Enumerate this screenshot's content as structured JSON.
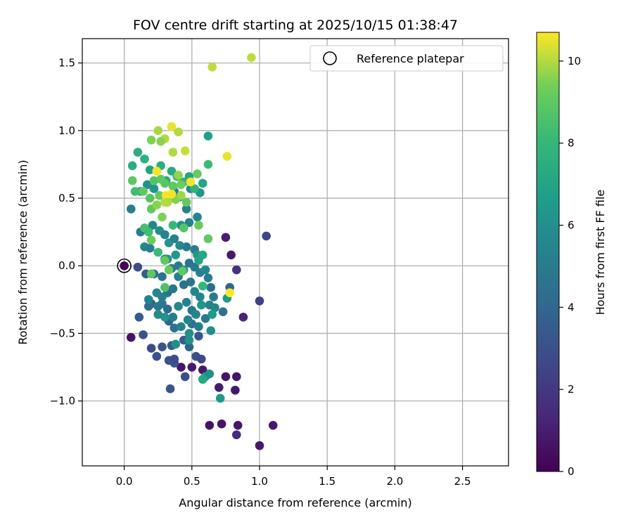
{
  "chart_data": {
    "type": "scatter",
    "title": "FOV centre drift starting at 2025/10/15 01:38:47",
    "xlabel": "Angular distance from reference (arcmin)",
    "ylabel": "Rotation from reference (arcmin)",
    "xlim": [
      -0.31,
      2.84
    ],
    "ylim": [
      -1.48,
      1.68
    ],
    "xticks": [
      0.0,
      0.5,
      1.0,
      1.5,
      2.0,
      2.5
    ],
    "yticks": [
      -1.0,
      -0.5,
      0.0,
      0.5,
      1.0,
      1.5
    ],
    "xtick_labels": [
      "0.0",
      "0.5",
      "1.0",
      "1.5",
      "2.0",
      "2.5"
    ],
    "ytick_labels": [
      "−1.0",
      "−0.5",
      "0.0",
      "0.5",
      "1.0",
      "1.5"
    ],
    "grid": true,
    "legend": {
      "label": "Reference platepar",
      "placement": "top-right"
    },
    "reference_point": {
      "x": 0.0,
      "y": 0.0
    },
    "colorbar": {
      "label": "Hours from first FF file",
      "colormap": "viridis",
      "range": [
        0,
        10.7
      ],
      "ticks": [
        0,
        2,
        4,
        6,
        8,
        10
      ],
      "tick_labels": [
        "0",
        "2",
        "4",
        "6",
        "8",
        "10"
      ]
    },
    "series": [
      {
        "name": "FOV centre",
        "points": [
          {
            "x": 0.05,
            "y": -0.53,
            "h": 0.6
          },
          {
            "x": 0.75,
            "y": 0.21,
            "h": 1.0
          },
          {
            "x": 0.79,
            "y": 0.08,
            "h": 0.8
          },
          {
            "x": 0.83,
            "y": -0.03,
            "h": 1.8
          },
          {
            "x": 0.88,
            "y": -0.38,
            "h": 1.2
          },
          {
            "x": 0.42,
            "y": -0.75,
            "h": 0.8
          },
          {
            "x": 0.5,
            "y": -0.75,
            "h": 0.9
          },
          {
            "x": 0.58,
            "y": -0.77,
            "h": 0.9
          },
          {
            "x": 0.75,
            "y": -0.82,
            "h": 0.7
          },
          {
            "x": 0.83,
            "y": -0.82,
            "h": 0.7
          },
          {
            "x": 0.7,
            "y": -0.9,
            "h": 0.9
          },
          {
            "x": 0.82,
            "y": -0.92,
            "h": 0.8
          },
          {
            "x": 0.63,
            "y": -1.18,
            "h": 0.6
          },
          {
            "x": 0.72,
            "y": -1.17,
            "h": 0.7
          },
          {
            "x": 0.84,
            "y": -1.18,
            "h": 0.8
          },
          {
            "x": 1.1,
            "y": -1.18,
            "h": 0.8
          },
          {
            "x": 0.83,
            "y": -1.25,
            "h": 1.5
          },
          {
            "x": 1.0,
            "y": -1.33,
            "h": 0.8
          },
          {
            "x": 1.05,
            "y": 0.22,
            "h": 2.5
          },
          {
            "x": 1.0,
            "y": -0.26,
            "h": 2.4
          },
          {
            "x": 0.1,
            "y": -0.01,
            "h": 2.8
          },
          {
            "x": 0.11,
            "y": -0.38,
            "h": 3.5
          },
          {
            "x": 0.14,
            "y": -0.51,
            "h": 3.0
          },
          {
            "x": 0.2,
            "y": -0.61,
            "h": 2.8
          },
          {
            "x": 0.28,
            "y": -0.6,
            "h": 3.2
          },
          {
            "x": 0.24,
            "y": -0.67,
            "h": 3.0
          },
          {
            "x": 0.33,
            "y": -0.7,
            "h": 3.0
          },
          {
            "x": 0.37,
            "y": -0.72,
            "h": 3.3
          },
          {
            "x": 0.37,
            "y": -0.69,
            "h": 2.8
          },
          {
            "x": 0.34,
            "y": -0.91,
            "h": 3.2
          },
          {
            "x": 0.45,
            "y": -0.82,
            "h": 2.9
          },
          {
            "x": 0.53,
            "y": -0.67,
            "h": 3.0
          },
          {
            "x": 0.57,
            "y": -0.69,
            "h": 2.8
          },
          {
            "x": 0.35,
            "y": -0.59,
            "h": 3.5
          },
          {
            "x": 0.48,
            "y": -0.6,
            "h": 3.8
          },
          {
            "x": 0.44,
            "y": -0.55,
            "h": 3.6
          },
          {
            "x": 0.55,
            "y": -0.52,
            "h": 3.2
          },
          {
            "x": 0.2,
            "y": -0.28,
            "h": 3.9
          },
          {
            "x": 0.18,
            "y": -0.3,
            "h": 4.3
          },
          {
            "x": 0.25,
            "y": -0.3,
            "h": 4.8
          },
          {
            "x": 0.32,
            "y": -0.32,
            "h": 4.2
          },
          {
            "x": 0.33,
            "y": -0.41,
            "h": 3.9
          },
          {
            "x": 0.37,
            "y": -0.46,
            "h": 4.4
          },
          {
            "x": 0.42,
            "y": -0.45,
            "h": 5.3
          },
          {
            "x": 0.5,
            "y": -0.43,
            "h": 4.6
          },
          {
            "x": 0.55,
            "y": -0.45,
            "h": 5.0
          },
          {
            "x": 0.6,
            "y": -0.39,
            "h": 5.0
          },
          {
            "x": 0.63,
            "y": -0.29,
            "h": 5.3
          },
          {
            "x": 0.67,
            "y": -0.31,
            "h": 5.5
          },
          {
            "x": 0.73,
            "y": -0.34,
            "h": 4.4
          },
          {
            "x": 0.76,
            "y": -0.24,
            "h": 6.5
          },
          {
            "x": 0.78,
            "y": -0.16,
            "h": 3.8
          },
          {
            "x": 0.66,
            "y": -0.23,
            "h": 5.0
          },
          {
            "x": 0.64,
            "y": -0.16,
            "h": 4.3
          },
          {
            "x": 0.56,
            "y": -0.23,
            "h": 5.5
          },
          {
            "x": 0.52,
            "y": -0.19,
            "h": 5.5
          },
          {
            "x": 0.49,
            "y": -0.12,
            "h": 4.8
          },
          {
            "x": 0.44,
            "y": -0.14,
            "h": 4.5
          },
          {
            "x": 0.4,
            "y": -0.08,
            "h": 5.1
          },
          {
            "x": 0.36,
            "y": -0.17,
            "h": 4.7
          },
          {
            "x": 0.32,
            "y": -0.2,
            "h": 4.6
          },
          {
            "x": 0.28,
            "y": -0.23,
            "h": 5.2
          },
          {
            "x": 0.24,
            "y": -0.2,
            "h": 5.6
          },
          {
            "x": 0.18,
            "y": -0.25,
            "h": 5.3
          },
          {
            "x": 0.16,
            "y": -0.06,
            "h": 3.6
          },
          {
            "x": 0.22,
            "y": -0.06,
            "h": 4.2
          },
          {
            "x": 0.28,
            "y": -0.08,
            "h": 4.7
          },
          {
            "x": 0.3,
            "y": 0.05,
            "h": 5.3
          },
          {
            "x": 0.35,
            "y": -0.02,
            "h": 4.8
          },
          {
            "x": 0.4,
            "y": 0.0,
            "h": 5.0
          },
          {
            "x": 0.44,
            "y": -0.03,
            "h": 6.1
          },
          {
            "x": 0.48,
            "y": 0.02,
            "h": 4.5
          },
          {
            "x": 0.52,
            "y": -0.01,
            "h": 4.9
          },
          {
            "x": 0.56,
            "y": -0.05,
            "h": 5.2
          },
          {
            "x": 0.6,
            "y": -0.03,
            "h": 5.5
          },
          {
            "x": 0.62,
            "y": -0.09,
            "h": 5.0
          },
          {
            "x": 0.46,
            "y": -0.27,
            "h": 5.2
          },
          {
            "x": 0.5,
            "y": -0.33,
            "h": 4.8
          },
          {
            "x": 0.4,
            "y": -0.3,
            "h": 5.6
          },
          {
            "x": 0.28,
            "y": -0.28,
            "h": 4.9
          },
          {
            "x": 0.36,
            "y": -0.38,
            "h": 5.0
          },
          {
            "x": 0.47,
            "y": -0.4,
            "h": 5.4
          },
          {
            "x": 0.53,
            "y": -0.36,
            "h": 5.5
          },
          {
            "x": 0.48,
            "y": -0.5,
            "h": 6.0
          },
          {
            "x": 0.48,
            "y": -0.55,
            "h": 6.1
          },
          {
            "x": 0.38,
            "y": -0.58,
            "h": 6.0
          },
          {
            "x": 0.3,
            "y": -0.38,
            "h": 6.2
          },
          {
            "x": 0.25,
            "y": -0.36,
            "h": 5.8
          },
          {
            "x": 0.57,
            "y": -0.29,
            "h": 6.3
          },
          {
            "x": 0.65,
            "y": -0.36,
            "h": 6.5
          },
          {
            "x": 0.64,
            "y": -0.48,
            "h": 6.0
          },
          {
            "x": 0.6,
            "y": -0.82,
            "h": 6.6
          },
          {
            "x": 0.63,
            "y": -0.8,
            "h": 6.0
          },
          {
            "x": 0.71,
            "y": -0.98,
            "h": 6.4
          },
          {
            "x": 0.58,
            "y": -0.84,
            "h": 7.2
          },
          {
            "x": 0.05,
            "y": 0.42,
            "h": 5.2
          },
          {
            "x": 0.12,
            "y": 0.25,
            "h": 5.0
          },
          {
            "x": 0.15,
            "y": 0.14,
            "h": 5.5
          },
          {
            "x": 0.19,
            "y": 0.13,
            "h": 5.1
          },
          {
            "x": 0.21,
            "y": 0.3,
            "h": 5.6
          },
          {
            "x": 0.26,
            "y": 0.26,
            "h": 5.9
          },
          {
            "x": 0.3,
            "y": 0.23,
            "h": 5.4
          },
          {
            "x": 0.33,
            "y": 0.17,
            "h": 6.2
          },
          {
            "x": 0.37,
            "y": 0.2,
            "h": 5.3
          },
          {
            "x": 0.41,
            "y": 0.15,
            "h": 5.8
          },
          {
            "x": 0.46,
            "y": 0.14,
            "h": 5.0
          },
          {
            "x": 0.52,
            "y": 0.12,
            "h": 5.1
          },
          {
            "x": 0.54,
            "y": 0.08,
            "h": 6.3
          },
          {
            "x": 0.58,
            "y": 0.08,
            "h": 7.2
          },
          {
            "x": 0.55,
            "y": 0.04,
            "h": 7.0
          },
          {
            "x": 0.32,
            "y": 0.05,
            "h": 6.1
          },
          {
            "x": 0.38,
            "y": 0.08,
            "h": 6.5
          },
          {
            "x": 0.42,
            "y": 0.3,
            "h": 6.0
          },
          {
            "x": 0.48,
            "y": 0.32,
            "h": 5.4
          },
          {
            "x": 0.54,
            "y": 0.36,
            "h": 5.5
          },
          {
            "x": 0.46,
            "y": 0.42,
            "h": 5.3
          },
          {
            "x": 0.37,
            "y": 0.55,
            "h": 5.2
          },
          {
            "x": 0.41,
            "y": 0.51,
            "h": 5.7
          },
          {
            "x": 0.49,
            "y": 0.57,
            "h": 5.6
          },
          {
            "x": 0.56,
            "y": 0.54,
            "h": 6.3
          },
          {
            "x": 0.58,
            "y": 0.61,
            "h": 7.0
          },
          {
            "x": 0.62,
            "y": 0.96,
            "h": 6.8
          },
          {
            "x": 0.17,
            "y": 0.6,
            "h": 6.0
          },
          {
            "x": 0.12,
            "y": 0.55,
            "h": 6.8
          },
          {
            "x": 0.06,
            "y": 0.74,
            "h": 7.5
          },
          {
            "x": 0.1,
            "y": 0.84,
            "h": 7.5
          },
          {
            "x": 0.15,
            "y": 0.79,
            "h": 7.7
          },
          {
            "x": 0.19,
            "y": 0.71,
            "h": 7.0
          },
          {
            "x": 0.22,
            "y": 0.57,
            "h": 6.3
          },
          {
            "x": 0.27,
            "y": 0.74,
            "h": 7.5
          },
          {
            "x": 0.31,
            "y": 0.63,
            "h": 7.1
          },
          {
            "x": 0.35,
            "y": 0.7,
            "h": 7.3
          },
          {
            "x": 0.39,
            "y": 0.66,
            "h": 8.2
          },
          {
            "x": 0.44,
            "y": 0.62,
            "h": 7.8
          },
          {
            "x": 0.48,
            "y": 0.66,
            "h": 7.0
          },
          {
            "x": 0.52,
            "y": 0.57,
            "h": 7.8
          },
          {
            "x": 0.54,
            "y": 0.68,
            "h": 9.2
          },
          {
            "x": 0.62,
            "y": 0.75,
            "h": 8.2
          },
          {
            "x": 0.06,
            "y": 0.63,
            "h": 8.9
          },
          {
            "x": 0.08,
            "y": 0.55,
            "h": 8.3
          },
          {
            "x": 0.14,
            "y": 0.55,
            "h": 9.0
          },
          {
            "x": 0.19,
            "y": 0.5,
            "h": 8.8
          },
          {
            "x": 0.2,
            "y": 0.42,
            "h": 9.1
          },
          {
            "x": 0.15,
            "y": 0.28,
            "h": 8.5
          },
          {
            "x": 0.18,
            "y": 0.25,
            "h": 8.3
          },
          {
            "x": 0.2,
            "y": 0.19,
            "h": 9.2
          },
          {
            "x": 0.25,
            "y": 0.1,
            "h": 8.2
          },
          {
            "x": 0.3,
            "y": 0.04,
            "h": 9.0
          },
          {
            "x": 0.33,
            "y": -0.03,
            "h": 9.2
          },
          {
            "x": 0.2,
            "y": -0.06,
            "h": 9.0
          },
          {
            "x": 0.3,
            "y": -0.16,
            "h": 8.6
          },
          {
            "x": 0.43,
            "y": -0.04,
            "h": 9.0
          },
          {
            "x": 0.58,
            "y": -0.15,
            "h": 8.0
          },
          {
            "x": 0.62,
            "y": 0.2,
            "h": 9.0
          },
          {
            "x": 0.55,
            "y": 0.3,
            "h": 9.2
          },
          {
            "x": 0.44,
            "y": 0.28,
            "h": 8.8
          },
          {
            "x": 0.36,
            "y": 0.3,
            "h": 8.1
          },
          {
            "x": 0.28,
            "y": 0.36,
            "h": 9.5
          },
          {
            "x": 0.3,
            "y": 0.47,
            "h": 10.0
          },
          {
            "x": 0.33,
            "y": 0.5,
            "h": 9.6
          },
          {
            "x": 0.38,
            "y": 0.49,
            "h": 9.5
          },
          {
            "x": 0.42,
            "y": 0.52,
            "h": 9.8
          },
          {
            "x": 0.46,
            "y": 0.47,
            "h": 9.1
          },
          {
            "x": 0.24,
            "y": 0.45,
            "h": 9.6
          },
          {
            "x": 0.26,
            "y": 0.52,
            "h": 9.2
          },
          {
            "x": 0.22,
            "y": 0.63,
            "h": 8.7
          },
          {
            "x": 0.27,
            "y": 0.64,
            "h": 9.0
          },
          {
            "x": 0.3,
            "y": 0.61,
            "h": 8.9
          },
          {
            "x": 0.36,
            "y": 0.59,
            "h": 9.0
          },
          {
            "x": 0.4,
            "y": 0.67,
            "h": 9.7
          },
          {
            "x": 0.42,
            "y": 0.6,
            "h": 9.3
          },
          {
            "x": 0.2,
            "y": 0.93,
            "h": 9.5
          },
          {
            "x": 0.25,
            "y": 1.0,
            "h": 9.9
          },
          {
            "x": 0.3,
            "y": 0.94,
            "h": 10.0
          },
          {
            "x": 0.35,
            "y": 1.03,
            "h": 10.5
          },
          {
            "x": 0.4,
            "y": 0.99,
            "h": 10.0
          },
          {
            "x": 0.36,
            "y": 0.84,
            "h": 10.0
          },
          {
            "x": 0.45,
            "y": 0.85,
            "h": 10.2
          },
          {
            "x": 0.27,
            "y": 0.92,
            "h": 9.6
          },
          {
            "x": 0.76,
            "y": 0.81,
            "h": 10.5
          },
          {
            "x": 0.65,
            "y": 1.47,
            "h": 10.1
          },
          {
            "x": 0.94,
            "y": 1.54,
            "h": 10.1
          },
          {
            "x": 0.24,
            "y": 0.7,
            "h": 10.6
          },
          {
            "x": 0.31,
            "y": 0.52,
            "h": 10.6
          },
          {
            "x": 0.35,
            "y": 0.53,
            "h": 10.6
          },
          {
            "x": 0.32,
            "y": 0.47,
            "h": 10.0
          },
          {
            "x": 0.49,
            "y": 0.62,
            "h": 10.6
          },
          {
            "x": 0.78,
            "y": -0.2,
            "h": 10.7
          }
        ]
      }
    ]
  }
}
